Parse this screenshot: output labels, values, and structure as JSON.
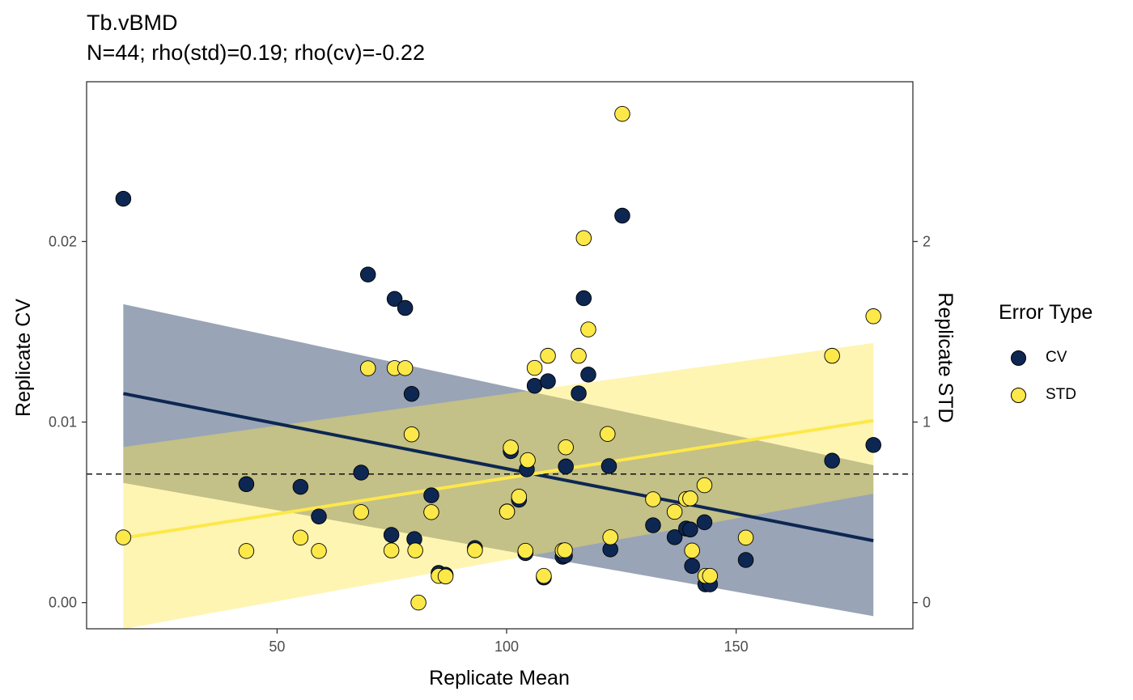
{
  "chart_data": {
    "type": "scatter",
    "title": "Tb.vBMD",
    "subtitle": "N=44; rho(std)=0.19; rho(cv)=-0.22",
    "xlabel": "Replicate Mean",
    "ylabel": "Replicate CV",
    "y2label": "Replicate STD",
    "xlim": [
      8.5,
      188.5
    ],
    "ylim": [
      -0.00145,
      0.02885
    ],
    "y2lim": [
      -0.145,
      2.885
    ],
    "xticks": [
      50,
      100,
      150
    ],
    "yticks": [
      0.0,
      0.01,
      0.02
    ],
    "ytick_labels": [
      "0.00",
      "0.01",
      "0.02"
    ],
    "y2ticks": [
      0,
      1,
      2
    ],
    "hline_cv": 0.00712,
    "grid": false,
    "legend": {
      "title": "Error Type",
      "position": "right",
      "entries": [
        "CV",
        "STD"
      ]
    },
    "colors": {
      "CV": "#0d2752",
      "STD": "#fde84a"
    },
    "series": [
      {
        "name": "CV",
        "axis": "left",
        "x": [
          16.5,
          43.3,
          55.1,
          59.1,
          68.3,
          69.8,
          74.9,
          75.6,
          77.9,
          79.3,
          79.9,
          83.6,
          85.2,
          86.7,
          93.1,
          100.1,
          100.9,
          102.7,
          104.1,
          104.4,
          106.1,
          108.1,
          109.0,
          112.2,
          112.7,
          112.9,
          115.7,
          116.8,
          117.8,
          122.3,
          122.6,
          125.2,
          131.9,
          136.6,
          139.1,
          140.0,
          140.4,
          143.1,
          143.3,
          144.3,
          152.1,
          170.9,
          179.9
        ],
        "y": [
          0.02237,
          0.00656,
          0.00641,
          0.00477,
          0.0072,
          0.01817,
          0.00375,
          0.01682,
          0.01632,
          0.01156,
          0.00352,
          0.00594,
          0.00164,
          0.00154,
          0.00302,
          0.00505,
          0.00839,
          0.0057,
          0.00274,
          0.00738,
          0.01201,
          0.00139,
          0.01226,
          0.00254,
          0.0026,
          0.00754,
          0.01159,
          0.01686,
          0.01263,
          0.00756,
          0.00295,
          0.02143,
          0.00428,
          0.00362,
          0.0041,
          0.00405,
          0.00203,
          0.00445,
          0.00101,
          0.00101,
          0.00236,
          0.00786,
          0.00873
        ]
      },
      {
        "name": "STD",
        "axis": "right",
        "x": [
          16.5,
          43.3,
          55.1,
          59.1,
          68.3,
          69.8,
          74.9,
          75.6,
          77.9,
          79.3,
          80.1,
          80.8,
          83.6,
          85.2,
          86.7,
          93.1,
          100.1,
          100.9,
          102.7,
          104.1,
          104.6,
          106.1,
          108.1,
          109.0,
          112.2,
          112.7,
          112.9,
          115.7,
          116.8,
          117.8,
          122.0,
          122.6,
          125.2,
          131.9,
          136.6,
          139.1,
          140.0,
          140.4,
          143.1,
          143.3,
          144.3,
          152.1,
          170.9,
          179.9
        ],
        "y": [
          0.361,
          0.286,
          0.36,
          0.286,
          0.501,
          1.298,
          0.289,
          1.299,
          1.299,
          0.932,
          0.289,
          0.0,
          0.501,
          0.148,
          0.145,
          0.29,
          0.504,
          0.859,
          0.587,
          0.287,
          0.789,
          1.3,
          0.148,
          1.367,
          0.288,
          0.29,
          0.86,
          1.367,
          2.019,
          1.513,
          0.934,
          0.362,
          2.707,
          0.572,
          0.503,
          0.574,
          0.577,
          0.288,
          0.65,
          0.148,
          0.148,
          0.36,
          1.367,
          1.586
        ]
      }
    ],
    "fits": [
      {
        "name": "CV",
        "axis": "left",
        "x": [
          16.5,
          179.9
        ],
        "y": [
          0.01158,
          0.00343
        ],
        "ci_lower": [
          0.00663,
          -0.00075
        ],
        "ci_upper": [
          0.01653,
          0.00761
        ]
      },
      {
        "name": "STD",
        "axis": "right",
        "x": [
          16.5,
          179.9
        ],
        "y": [
          0.358,
          1.008
        ],
        "ci_lower": [
          -0.146,
          0.603
        ],
        "ci_upper": [
          0.862,
          1.438
        ]
      }
    ]
  }
}
